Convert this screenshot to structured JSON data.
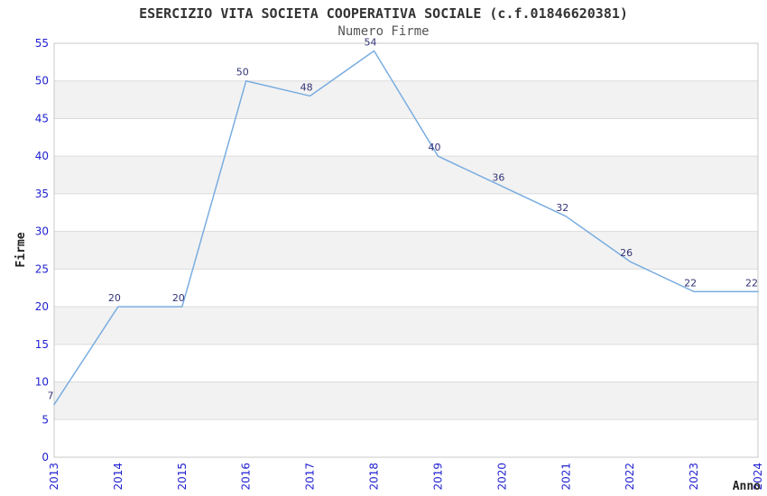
{
  "chart_data": {
    "type": "line",
    "title": "ESERCIZIO VITA SOCIETA COOPERATIVA SOCIALE (c.f.01846620381)",
    "subtitle": "Numero Firme",
    "xlabel": "Anno",
    "ylabel": "Firme",
    "categories": [
      "2013",
      "2014",
      "2015",
      "2016",
      "2017",
      "2018",
      "2019",
      "2020",
      "2021",
      "2022",
      "2023",
      "2024"
    ],
    "series": [
      {
        "name": "Numero Firme",
        "values": [
          7,
          20,
          20,
          50,
          48,
          54,
          40,
          36,
          32,
          26,
          22,
          22
        ]
      }
    ],
    "ylim": [
      0,
      55
    ],
    "ytick_step": 5,
    "y_ticks": [
      0,
      5,
      10,
      15,
      20,
      25,
      30,
      35,
      40,
      45,
      50,
      55
    ],
    "grid": true,
    "banded_background": true,
    "legend_position": "none",
    "colors": {
      "line": "#7aade0",
      "tick_label": "#2121d2",
      "point_label": "#333377",
      "band_gray": "#f2f2f2",
      "gridline": "#dcdcdc",
      "plot_border": "#c8c8c8",
      "title": "#333333",
      "subtitle": "#555555",
      "axis_title": "#222222",
      "background": "#ffffff"
    }
  }
}
